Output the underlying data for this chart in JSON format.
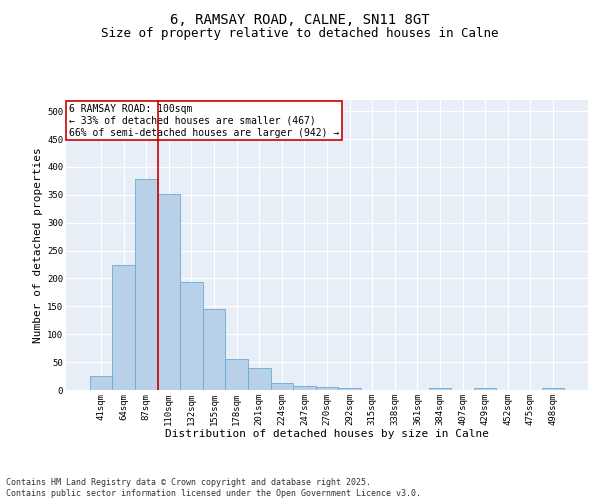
{
  "title_line1": "6, RAMSAY ROAD, CALNE, SN11 8GT",
  "title_line2": "Size of property relative to detached houses in Calne",
  "xlabel": "Distribution of detached houses by size in Calne",
  "ylabel": "Number of detached properties",
  "categories": [
    "41sqm",
    "64sqm",
    "87sqm",
    "110sqm",
    "132sqm",
    "155sqm",
    "178sqm",
    "201sqm",
    "224sqm",
    "247sqm",
    "270sqm",
    "292sqm",
    "315sqm",
    "338sqm",
    "361sqm",
    "384sqm",
    "407sqm",
    "429sqm",
    "452sqm",
    "475sqm",
    "498sqm"
  ],
  "values": [
    25,
    224,
    378,
    352,
    193,
    145,
    55,
    40,
    12,
    8,
    5,
    3,
    0,
    0,
    0,
    3,
    0,
    3,
    0,
    0,
    3
  ],
  "bar_color": "#b8d0e8",
  "bar_edge_color": "#6aaad4",
  "bar_edge_width": 0.6,
  "vline_x_index": 2,
  "vline_color": "#cc0000",
  "annotation_text": "6 RAMSAY ROAD: 100sqm\n← 33% of detached houses are smaller (467)\n66% of semi-detached houses are larger (942) →",
  "annotation_box_facecolor": "#ffffff",
  "annotation_box_edgecolor": "#cc0000",
  "ylim": [
    0,
    520
  ],
  "yticks": [
    0,
    50,
    100,
    150,
    200,
    250,
    300,
    350,
    400,
    450,
    500
  ],
  "background_color": "#e8eef8",
  "grid_color": "#ffffff",
  "title_fontsize": 10,
  "subtitle_fontsize": 9,
  "axis_label_fontsize": 8,
  "tick_fontsize": 6.5,
  "annotation_fontsize": 7,
  "footer_text": "Contains HM Land Registry data © Crown copyright and database right 2025.\nContains public sector information licensed under the Open Government Licence v3.0.",
  "footer_fontsize": 6
}
